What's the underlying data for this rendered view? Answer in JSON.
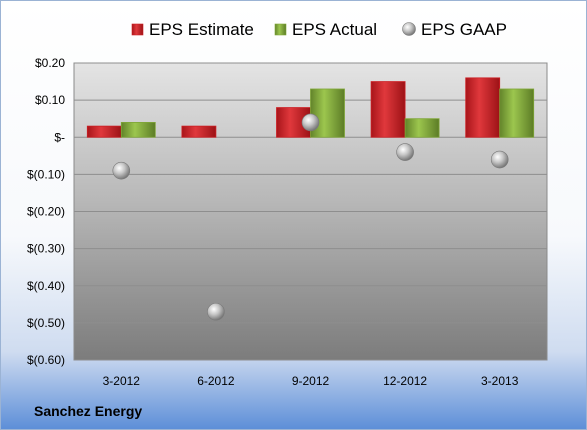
{
  "chart_data": {
    "type": "bar",
    "categories": [
      "3-2012",
      "6-2012",
      "9-2012",
      "12-2012",
      "3-2013"
    ],
    "series": [
      {
        "name": "EPS Estimate",
        "kind": "bar",
        "color": "#cc1f24",
        "values": [
          0.03,
          0.03,
          0.08,
          0.15,
          0.16
        ]
      },
      {
        "name": "EPS Actual",
        "kind": "bar",
        "color": "#7fa637",
        "values": [
          0.04,
          null,
          0.13,
          0.05,
          0.13
        ]
      },
      {
        "name": "EPS GAAP",
        "kind": "scatter",
        "color": "#a9a9a9",
        "values": [
          -0.09,
          -0.47,
          0.04,
          -0.04,
          -0.06
        ]
      }
    ],
    "ylim": [
      -0.6,
      0.2
    ],
    "yticks": [
      0.2,
      0.1,
      0.0,
      -0.1,
      -0.2,
      -0.3,
      -0.4,
      -0.5,
      -0.6
    ],
    "ytick_labels": [
      "$0.20",
      "$0.10",
      "$-",
      "$(0.10)",
      "$(0.20)",
      "$(0.30)",
      "$(0.40)",
      "$(0.50)",
      "$(0.60)"
    ],
    "grid": true,
    "legend_position": "top"
  },
  "footer": {
    "company": "Sanchez Energy"
  }
}
